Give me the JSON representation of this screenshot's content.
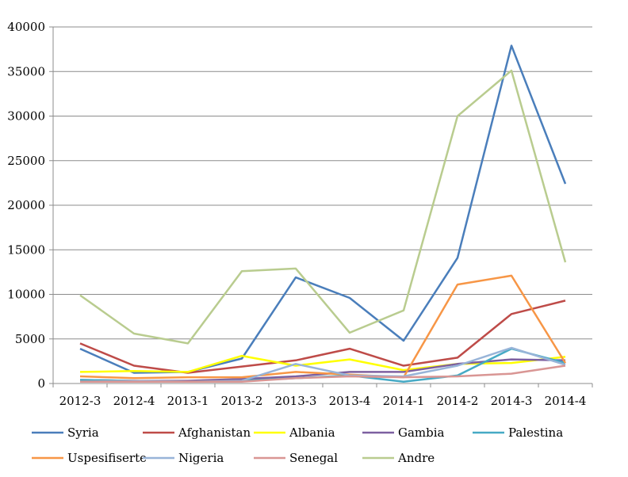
{
  "chart_data": {
    "type": "line",
    "categories": [
      "2012-3",
      "2012-4",
      "2013-1",
      "2013-2",
      "2013-3",
      "2013-4",
      "2014-1",
      "2014-2",
      "2014-3",
      "2014-4"
    ],
    "ylim": [
      0,
      40000
    ],
    "yticks": [
      0,
      5000,
      10000,
      15000,
      20000,
      25000,
      30000,
      35000,
      40000
    ],
    "grid": "horizontal",
    "legend_position": "bottom",
    "series": [
      {
        "name": "Syria",
        "color": "#4a7ebb",
        "values": [
          3900,
          1200,
          1300,
          2800,
          11900,
          9600,
          4800,
          14100,
          37900,
          22400
        ]
      },
      {
        "name": "Afghanistan",
        "color": "#be4b48",
        "values": [
          4500,
          2000,
          1200,
          1900,
          2600,
          3900,
          2000,
          2900,
          7800,
          9300
        ]
      },
      {
        "name": "Albania",
        "color": "#ffff00",
        "values": [
          1300,
          1400,
          1300,
          3100,
          2000,
          2700,
          1500,
          2200,
          2300,
          3000
        ]
      },
      {
        "name": "Gambia",
        "color": "#7d60a0",
        "values": [
          400,
          300,
          300,
          500,
          800,
          1300,
          1300,
          2200,
          2700,
          2600
        ]
      },
      {
        "name": "Palestina",
        "color": "#46aac5",
        "values": [
          400,
          300,
          200,
          300,
          600,
          900,
          200,
          900,
          3900,
          2300
        ]
      },
      {
        "name": "Uspesifiserte",
        "color": "#f79646",
        "values": [
          800,
          600,
          700,
          700,
          1300,
          1000,
          700,
          11100,
          12100,
          2300
        ]
      },
      {
        "name": "Nigeria",
        "color": "#98b4d8",
        "values": [
          200,
          300,
          200,
          300,
          2200,
          900,
          800,
          2000,
          4000,
          2100
        ]
      },
      {
        "name": "Senegal",
        "color": "#d99694",
        "values": [
          200,
          200,
          200,
          200,
          600,
          800,
          700,
          800,
          1100,
          2000
        ]
      },
      {
        "name": "Andre",
        "color": "#b9cc8f",
        "values": [
          9900,
          5600,
          4500,
          12600,
          12900,
          5700,
          8200,
          30000,
          35100,
          13600
        ]
      }
    ]
  }
}
